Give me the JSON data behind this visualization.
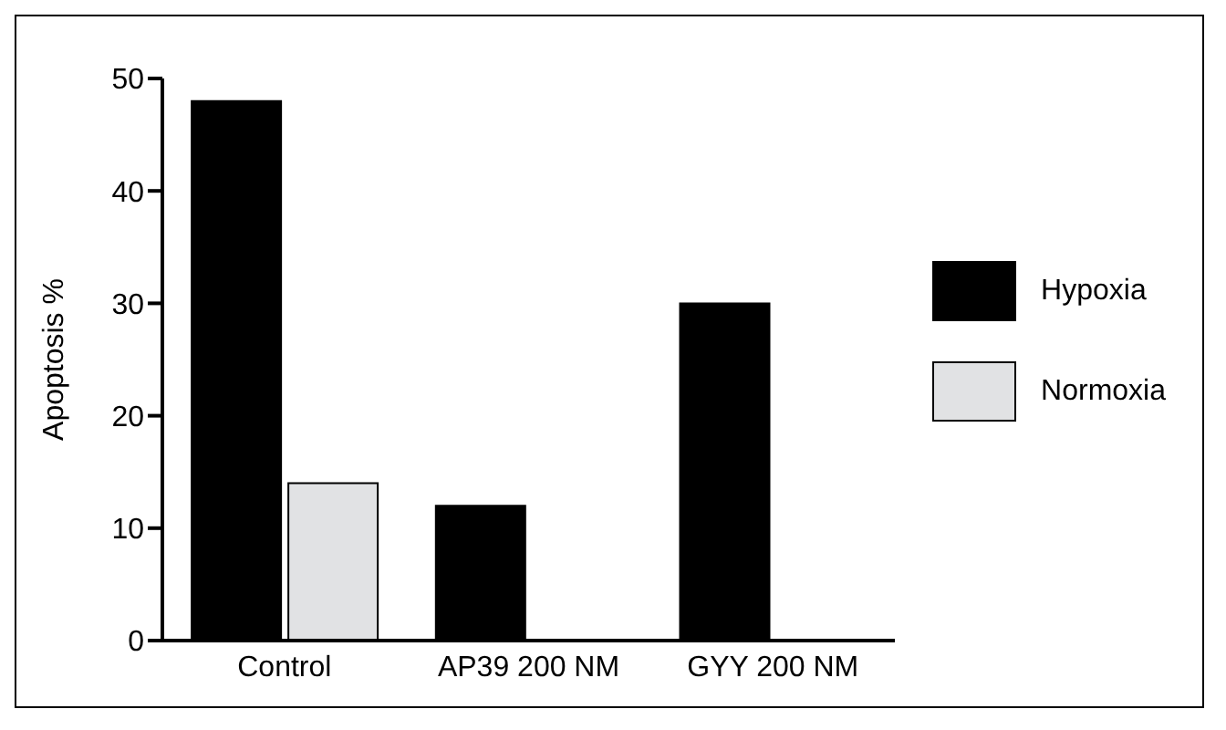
{
  "chart_data": {
    "type": "bar",
    "ylabel": "Apoptosis %",
    "categories": [
      "Control",
      "AP39 200 NM",
      "GYY 200 NM"
    ],
    "series": [
      {
        "name": "Hypoxia",
        "color": "#000000",
        "values": [
          48,
          12,
          30
        ]
      },
      {
        "name": "Normoxia",
        "color": "#e1e2e4",
        "values": [
          14,
          null,
          null
        ]
      }
    ],
    "ylim": [
      0,
      50
    ],
    "yticks": [
      0,
      10,
      20,
      30,
      40,
      50
    ],
    "grid": false,
    "legend": "right"
  }
}
